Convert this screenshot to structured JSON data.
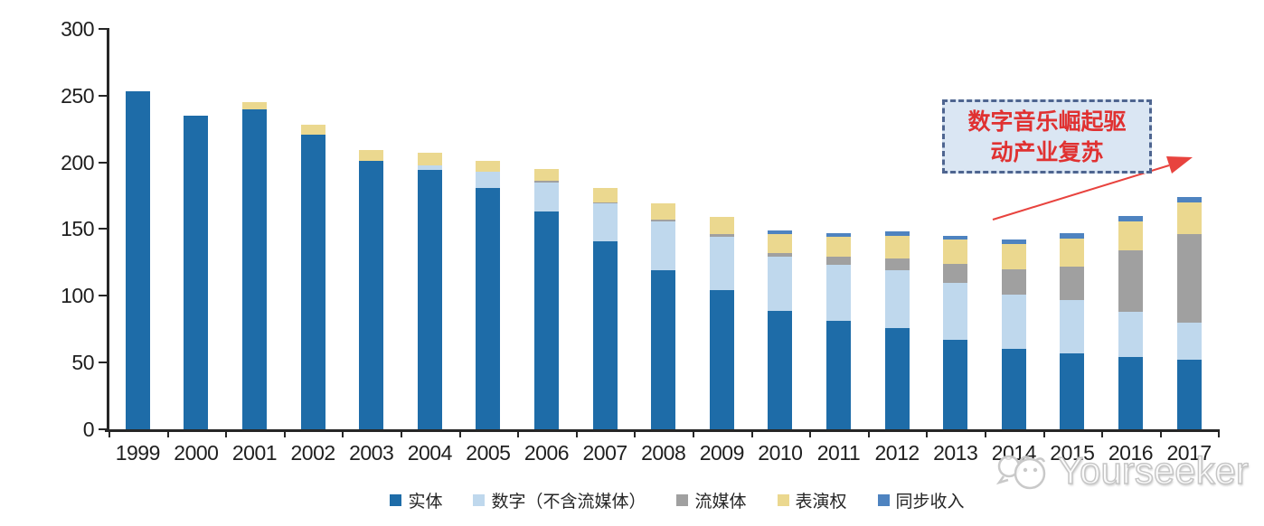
{
  "chart_data": {
    "type": "bar",
    "stacked": true,
    "title": "",
    "xlabel": "",
    "ylabel": "",
    "ylim": [
      0,
      300
    ],
    "yticks": [
      0,
      50,
      100,
      150,
      200,
      250,
      300
    ],
    "grid": false,
    "legend_position": "bottom",
    "categories": [
      "1999",
      "2000",
      "2001",
      "2002",
      "2003",
      "2004",
      "2005",
      "2006",
      "2007",
      "2008",
      "2009",
      "2010",
      "2011",
      "2012",
      "2013",
      "2014",
      "2015",
      "2016",
      "2017"
    ],
    "series": [
      {
        "name": "实体",
        "key": "physical",
        "color": "#1E6CA8",
        "values": [
          253,
          235,
          240,
          221,
          201,
          194,
          181,
          163,
          141,
          119,
          104,
          89,
          81,
          76,
          67,
          60,
          57,
          54,
          52
        ]
      },
      {
        "name": "数字（不含流媒体）",
        "key": "digital-excl-streaming",
        "color": "#BFD8ED",
        "values": [
          0,
          0,
          0,
          0,
          0,
          4,
          12,
          22,
          28,
          37,
          40,
          40,
          42,
          43,
          43,
          41,
          40,
          34,
          28
        ]
      },
      {
        "name": "流媒体",
        "key": "streaming",
        "color": "#A0A0A0",
        "values": [
          0,
          0,
          0,
          0,
          0,
          0,
          0,
          1,
          1,
          1,
          2,
          3,
          6,
          9,
          14,
          19,
          25,
          46,
          66
        ]
      },
      {
        "name": "表演权",
        "key": "performance-rights",
        "color": "#EBD88F",
        "values": [
          0,
          0,
          5,
          7,
          8,
          9,
          8,
          9,
          11,
          12,
          13,
          14,
          15,
          17,
          18,
          19,
          21,
          22,
          24
        ]
      },
      {
        "name": "同步收入",
        "key": "sync-revenue",
        "color": "#4E83C0",
        "values": [
          0,
          0,
          0,
          0,
          0,
          0,
          0,
          0,
          0,
          0,
          0,
          3,
          3,
          3,
          3,
          3,
          4,
          4,
          4
        ]
      }
    ],
    "annotation_text": "数字音乐崛起驱动产业复苏"
  },
  "annotation": {
    "line1": "数字音乐崛起驱",
    "line2": "动产业复苏"
  },
  "watermark": {
    "text": "Yourseeker"
  }
}
